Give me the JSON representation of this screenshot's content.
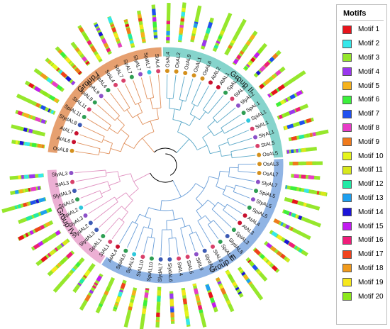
{
  "legend": {
    "title": "Motifs",
    "items": [
      {
        "label": "Motif 1",
        "color": "#e8141c"
      },
      {
        "label": "Motif 2",
        "color": "#35e8ea"
      },
      {
        "label": "Motif 3",
        "color": "#96e72c"
      },
      {
        "label": "Motif 4",
        "color": "#9a37ee"
      },
      {
        "label": "Motif 5",
        "color": "#f6b21c"
      },
      {
        "label": "Motif 6",
        "color": "#3cf03c"
      },
      {
        "label": "Motif 7",
        "color": "#1f50f0"
      },
      {
        "label": "Motif 8",
        "color": "#e83cc8"
      },
      {
        "label": "Motif 9",
        "color": "#f07a1c"
      },
      {
        "label": "Motif 10",
        "color": "#e6f41c"
      },
      {
        "label": "Motif 11",
        "color": "#d8e81c"
      },
      {
        "label": "Motif 12",
        "color": "#22eaa6"
      },
      {
        "label": "Motif 13",
        "color": "#1ea0f0"
      },
      {
        "label": "Motif 14",
        "color": "#1c14d8"
      },
      {
        "label": "Motif 15",
        "color": "#c21cf0"
      },
      {
        "label": "Motif 16",
        "color": "#f01c7a"
      },
      {
        "label": "Motif 17",
        "color": "#f0421c"
      },
      {
        "label": "Motif 18",
        "color": "#f09a1c"
      },
      {
        "label": "Motif 19",
        "color": "#f6e81c"
      },
      {
        "label": "Motif 20",
        "color": "#8ce81c"
      }
    ]
  },
  "groups": [
    {
      "name": "Group I",
      "color": "#e6a070",
      "start": 0,
      "end": 14
    },
    {
      "name": "Group II",
      "color": "#86d4cc",
      "start": 15,
      "end": 30
    },
    {
      "name": "Group III",
      "color": "#90b4e4",
      "start": 31,
      "end": 53
    },
    {
      "name": "Group IV",
      "color": "#ecb0d4",
      "start": 54,
      "end": 63
    }
  ],
  "leaves": [
    {
      "label": "OsAL8",
      "color": "#d4901c"
    },
    {
      "label": "AtAL6",
      "color": "#c8102e"
    },
    {
      "label": "AtAL7",
      "color": "#c8102e"
    },
    {
      "label": "SlydAL8",
      "color": "#3c5ab4"
    },
    {
      "label": "SpiAL11",
      "color": "#2e9e52"
    },
    {
      "label": "StAL11",
      "color": "#d8406a"
    },
    {
      "label": "SpiAL9",
      "color": "#2e9e52"
    },
    {
      "label": "SlyAL9",
      "color": "#8c50c8"
    },
    {
      "label": "SpAL4",
      "color": "#2e9e52"
    },
    {
      "label": "StAL4",
      "color": "#d8406a"
    },
    {
      "label": "StAL7",
      "color": "#d8406a"
    },
    {
      "label": "SpAL7",
      "color": "#2e9e52"
    },
    {
      "label": "SlyAL7",
      "color": "#8c50c8"
    },
    {
      "label": "SpiAL7",
      "color": "#2ec8dc"
    },
    {
      "label": "StAL4",
      "color": "#d8406a"
    },
    {
      "label": "OsAL4",
      "color": "#d4901c"
    },
    {
      "label": "OsAL2",
      "color": "#d4901c"
    },
    {
      "label": "OsAL9",
      "color": "#d4901c"
    },
    {
      "label": "OsAL1",
      "color": "#d4901c"
    },
    {
      "label": "OsAL6",
      "color": "#d4901c"
    },
    {
      "label": "AtAL2",
      "color": "#c8102e"
    },
    {
      "label": "AtAL1",
      "color": "#c8102e"
    },
    {
      "label": "SpAL2",
      "color": "#2e9e52"
    },
    {
      "label": "StAL2",
      "color": "#d8406a"
    },
    {
      "label": "SlyAL2",
      "color": "#8c50c8"
    },
    {
      "label": "SpAL1",
      "color": "#2e9e52"
    },
    {
      "label": "SpiAL1",
      "color": "#2ec8dc"
    },
    {
      "label": "StAL1",
      "color": "#d8406a"
    },
    {
      "label": "SlyAL1",
      "color": "#8c50c8"
    },
    {
      "label": "StAL5",
      "color": "#d8406a"
    },
    {
      "label": "OsAL5",
      "color": "#d4901c"
    },
    {
      "label": "OsAL3",
      "color": "#d4901c"
    },
    {
      "label": "OsAL7",
      "color": "#d4901c"
    },
    {
      "label": "SlyAL7",
      "color": "#8c50c8"
    },
    {
      "label": "SpiAL5",
      "color": "#2e9e52"
    },
    {
      "label": "SlyAL5",
      "color": "#8c50c8"
    },
    {
      "label": "SpiAL5",
      "color": "#2e9e52"
    },
    {
      "label": "AtAL4",
      "color": "#c8102e"
    },
    {
      "label": "AtAL3",
      "color": "#c8102e"
    },
    {
      "label": "SpiAL3",
      "color": "#2e9e52"
    },
    {
      "label": "SlydAL8",
      "color": "#3c5ab4"
    },
    {
      "label": "SpiAL8",
      "color": "#2e9e52"
    },
    {
      "label": "StAL8",
      "color": "#d8406a"
    },
    {
      "label": "SlydAL5",
      "color": "#3c5ab4"
    },
    {
      "label": "SlAL9",
      "color": "#8c50c8"
    },
    {
      "label": "StAL6",
      "color": "#d8406a"
    },
    {
      "label": "StAL4",
      "color": "#d8406a"
    },
    {
      "label": "SlydAL6",
      "color": "#3c5ab4"
    },
    {
      "label": "SlydAL7",
      "color": "#3c5ab4"
    },
    {
      "label": "SpiAL10",
      "color": "#2e9e52"
    },
    {
      "label": "StAL10",
      "color": "#d8406a"
    },
    {
      "label": "SpiAL9",
      "color": "#2ec8dc"
    },
    {
      "label": "SpiAL6",
      "color": "#2e9e52"
    },
    {
      "label": "AtAL4",
      "color": "#c8102e"
    },
    {
      "label": "StAL1",
      "color": "#d8406a"
    },
    {
      "label": "SpiAL1",
      "color": "#2e9e52"
    },
    {
      "label": "SlydAL3",
      "color": "#3c5ab4"
    },
    {
      "label": "SlydAL2",
      "color": "#3c5ab4"
    },
    {
      "label": "SlyAL3",
      "color": "#8c50c8"
    },
    {
      "label": "SpiAL2",
      "color": "#2ec8dc"
    },
    {
      "label": "SpiAL6",
      "color": "#2e9e52"
    },
    {
      "label": "SlydAL3",
      "color": "#3c5ab4"
    },
    {
      "label": "StAL3",
      "color": "#d8406a"
    },
    {
      "label": "SlyAL3",
      "color": "#8c50c8"
    }
  ]
}
